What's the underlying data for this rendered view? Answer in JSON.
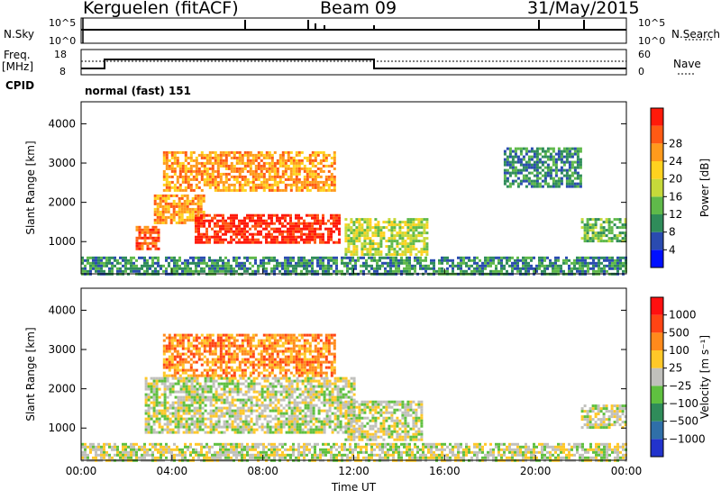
{
  "header": {
    "station": "Kerguelen (fitACF)",
    "beam": "Beam 09",
    "date": "31/May/2015"
  },
  "status_panels": {
    "nsky_label": "N.Sky",
    "nsearch_label": "N.Search",
    "nsky_ticks": [
      "10^5",
      "10^0"
    ],
    "nsearch_ticks": [
      "10^5",
      "10^0"
    ],
    "freq_label_1": "Freq.",
    "freq_label_2": "[MHz]",
    "freq_ticks": [
      "18",
      "8"
    ],
    "nave_label": "Nave",
    "nave_ticks": [
      "60",
      "0"
    ],
    "cpid_label": "CPID",
    "cpid_text": "normal (fast) 151"
  },
  "chart_data": [
    {
      "type": "heatmap",
      "name": "Power",
      "ylabel": "Slant Range [km]",
      "xlabel": "Time UT",
      "x_ticks": [
        "00:00",
        "04:00",
        "08:00",
        "12:00",
        "16:00",
        "20:00",
        "00:00"
      ],
      "xlim_hours": [
        0,
        24
      ],
      "y_ticks": [
        1000,
        2000,
        3000,
        4000
      ],
      "ylim_km": [
        180,
        4560
      ],
      "colorbar": {
        "label": "Power [dB]",
        "ticks": [
          4,
          8,
          12,
          16,
          20,
          24,
          28
        ],
        "range": [
          0,
          32
        ],
        "colors": [
          "#0010ff",
          "#2a4bb0",
          "#2f8c5a",
          "#5fb94a",
          "#c6d93a",
          "#ffd21f",
          "#ff9a1c",
          "#ff5a14",
          "#ff1a0a"
        ]
      },
      "regions": [
        {
          "t0": 0.0,
          "t1": 24.0,
          "r0": 200,
          "r1": 620,
          "level": 2
        },
        {
          "t0": 2.4,
          "t1": 3.4,
          "r0": 800,
          "r1": 1400,
          "level": 7
        },
        {
          "t0": 3.2,
          "t1": 5.4,
          "r0": 1500,
          "r1": 2200,
          "level": 6
        },
        {
          "t0": 5.0,
          "t1": 11.4,
          "r0": 950,
          "r1": 1700,
          "level": 8
        },
        {
          "t0": 3.6,
          "t1": 11.2,
          "r0": 2300,
          "r1": 3300,
          "level": 6
        },
        {
          "t0": 11.6,
          "t1": 15.2,
          "r0": 700,
          "r1": 1600,
          "level": 4
        },
        {
          "t0": 22.0,
          "t1": 24.0,
          "r0": 1000,
          "r1": 1600,
          "level": 3
        },
        {
          "t0": 18.6,
          "t1": 22.0,
          "r0": 2400,
          "r1": 3400,
          "level": 2
        }
      ]
    },
    {
      "type": "heatmap",
      "name": "Velocity",
      "ylabel": "Slant Range [km]",
      "xlabel": "Time UT",
      "x_ticks": [
        "00:00",
        "04:00",
        "08:00",
        "12:00",
        "16:00",
        "20:00",
        "00:00"
      ],
      "xlim_hours": [
        0,
        24
      ],
      "y_ticks": [
        1000,
        2000,
        3000,
        4000
      ],
      "ylim_km": [
        180,
        4560
      ],
      "colorbar": {
        "label": "Velocity [m s⁻¹]",
        "ticks": [
          "1000",
          "500",
          "100",
          "25",
          "−25",
          "−100",
          "−500",
          "−1000"
        ],
        "colors": [
          "#2233cc",
          "#2f6fa8",
          "#2f8c5a",
          "#5fc040",
          "#c0c0bc",
          "#ffc828",
          "#ff8a1c",
          "#ff4414",
          "#ff1010"
        ]
      },
      "regions": [
        {
          "t0": 0.0,
          "t1": 24.0,
          "r0": 200,
          "r1": 620,
          "level": 4
        },
        {
          "t0": 2.8,
          "t1": 12.0,
          "r0": 900,
          "r1": 2300,
          "level": 4
        },
        {
          "t0": 11.6,
          "t1": 15.0,
          "r0": 700,
          "r1": 1700,
          "level": 4
        },
        {
          "t0": 3.6,
          "t1": 11.2,
          "r0": 2300,
          "r1": 3400,
          "level": 6
        },
        {
          "t0": 22.0,
          "t1": 24.0,
          "r0": 1000,
          "r1": 1600,
          "level": 4
        }
      ]
    }
  ]
}
